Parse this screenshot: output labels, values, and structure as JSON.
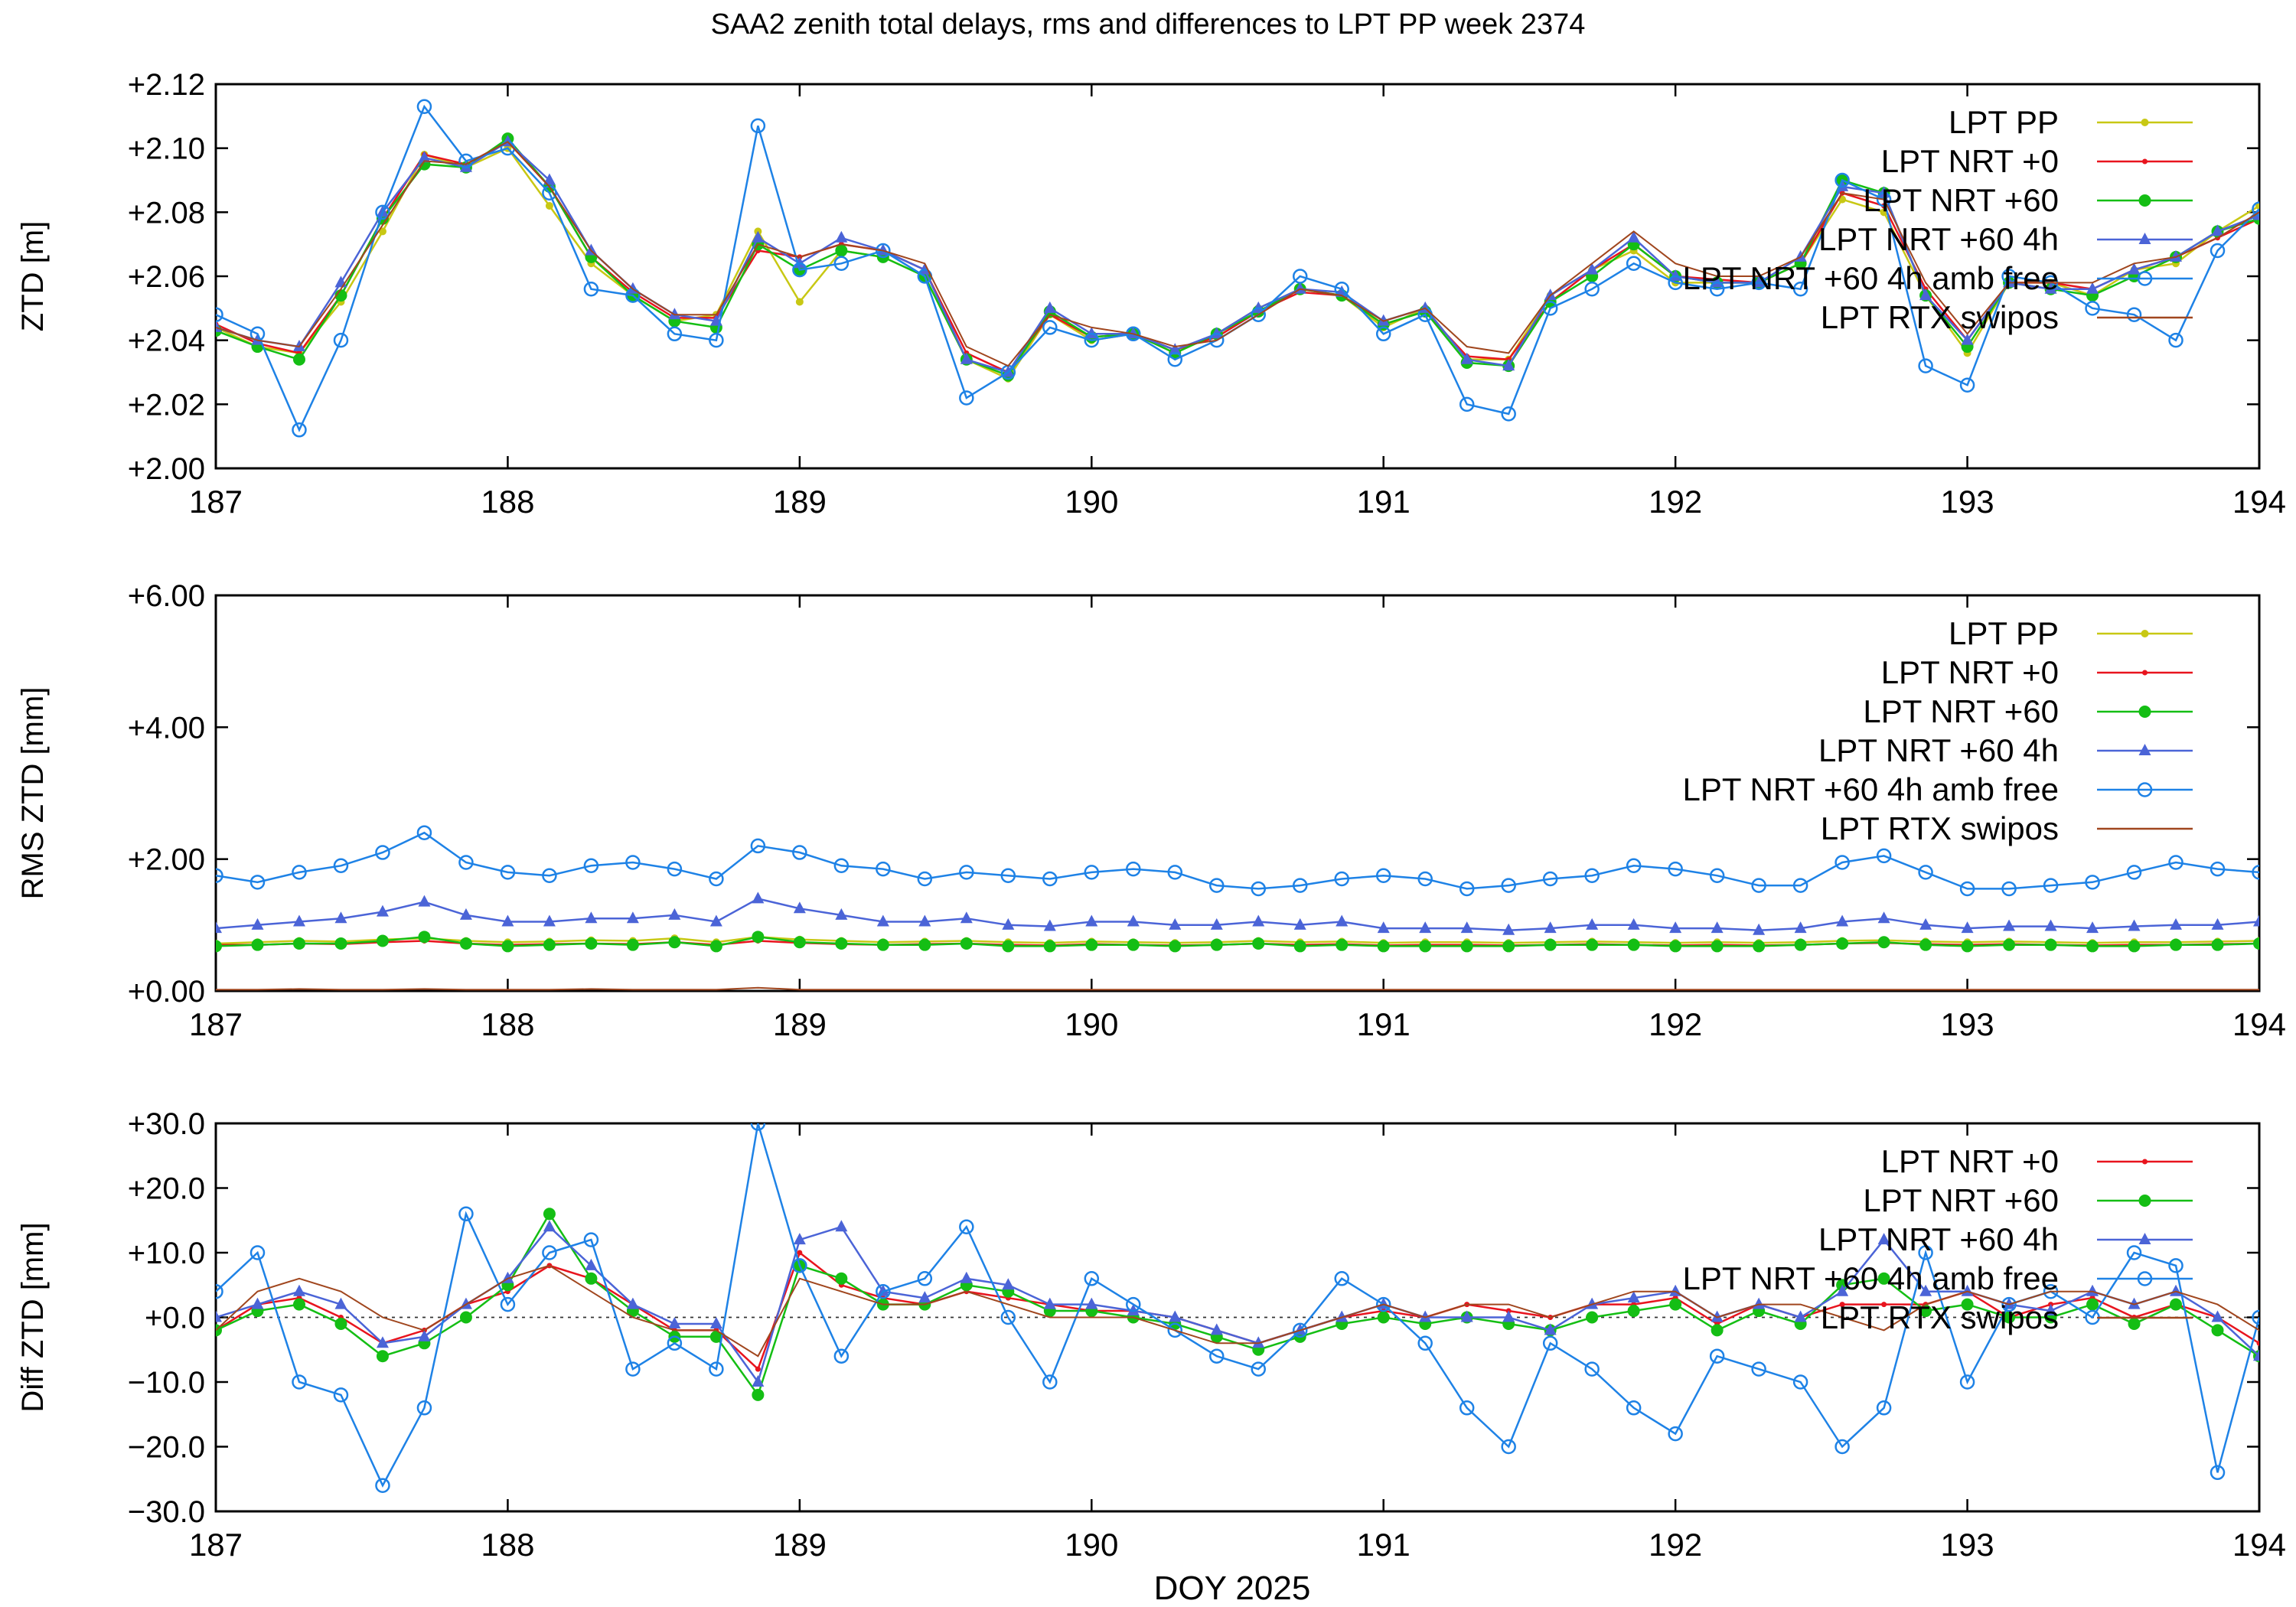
{
  "title": "SAA2 zenith total delays, rms and differences to LPT PP week 2374",
  "xlabel": "DOY 2025",
  "x_range": [
    187,
    194
  ],
  "x_ticks": [
    "187",
    "188",
    "189",
    "190",
    "191",
    "192",
    "193",
    "194"
  ],
  "colors": {
    "LPT PP": "#c8c814",
    "LPT NRT +0": "#e8141e",
    "LPT NRT +60": "#14be14",
    "LPT NRT +60 4h": "#4b64d7",
    "LPT NRT +60 4h amb free": "#1e82e6",
    "LPT RTX swipos": "#a0461e"
  },
  "chart_data": [
    {
      "id": "ztd",
      "type": "line",
      "ylabel": "ZTD [m]",
      "ylim": [
        2.0,
        2.12
      ],
      "y_ticks": [
        "+2.00",
        "+2.02",
        "+2.04",
        "+2.06",
        "+2.08",
        "+2.10",
        "+2.12"
      ],
      "legend": [
        "LPT PP",
        "LPT NRT +0",
        "LPT NRT +60",
        "LPT NRT +60 4h",
        "LPT NRT +60 4h amb free",
        "LPT RTX swipos"
      ],
      "series": [
        {
          "name": "LPT PP",
          "values": [
            2.044,
            2.038,
            2.036,
            2.052,
            2.074,
            2.098,
            2.094,
            2.1,
            2.082,
            2.064,
            2.054,
            2.046,
            2.048,
            2.074,
            2.052,
            2.068,
            2.066,
            2.06,
            2.034,
            2.028,
            2.048,
            2.04,
            2.042,
            2.036,
            2.042,
            2.05,
            2.056,
            2.054,
            2.044,
            2.05,
            2.034,
            2.034,
            2.054,
            2.062,
            2.068,
            2.058,
            2.058,
            2.058,
            2.064,
            2.084,
            2.08,
            2.054,
            2.036,
            2.058,
            2.058,
            2.054,
            2.062,
            2.064,
            2.074,
            2.082
          ]
        },
        {
          "name": "LPT NRT +0",
          "values": [
            2.045,
            2.039,
            2.036,
            2.054,
            2.078,
            2.098,
            2.095,
            2.102,
            2.088,
            2.066,
            2.055,
            2.047,
            2.047,
            2.068,
            2.066,
            2.07,
            2.068,
            2.062,
            2.036,
            2.03,
            2.048,
            2.041,
            2.042,
            2.037,
            2.041,
            2.049,
            2.055,
            2.054,
            2.045,
            2.049,
            2.035,
            2.034,
            2.052,
            2.062,
            2.07,
            2.06,
            2.059,
            2.058,
            2.064,
            2.086,
            2.082,
            2.056,
            2.04,
            2.058,
            2.058,
            2.056,
            2.062,
            2.066,
            2.072,
            2.078
          ]
        },
        {
          "name": "LPT NRT +60",
          "values": [
            2.043,
            2.038,
            2.034,
            2.054,
            2.078,
            2.095,
            2.094,
            2.103,
            2.088,
            2.066,
            2.054,
            2.046,
            2.044,
            2.07,
            2.062,
            2.068,
            2.066,
            2.06,
            2.034,
            2.029,
            2.049,
            2.041,
            2.042,
            2.036,
            2.042,
            2.049,
            2.056,
            2.054,
            2.045,
            2.049,
            2.033,
            2.032,
            2.052,
            2.06,
            2.07,
            2.06,
            2.058,
            2.058,
            2.064,
            2.09,
            2.086,
            2.054,
            2.038,
            2.058,
            2.056,
            2.054,
            2.06,
            2.066,
            2.074,
            2.078
          ]
        },
        {
          "name": "LPT NRT +60 4h",
          "values": [
            2.044,
            2.04,
            2.038,
            2.058,
            2.08,
            2.097,
            2.094,
            2.102,
            2.09,
            2.068,
            2.056,
            2.048,
            2.046,
            2.072,
            2.064,
            2.072,
            2.068,
            2.062,
            2.034,
            2.03,
            2.05,
            2.042,
            2.042,
            2.037,
            2.042,
            2.05,
            2.056,
            2.055,
            2.046,
            2.05,
            2.034,
            2.032,
            2.054,
            2.062,
            2.072,
            2.06,
            2.058,
            2.058,
            2.066,
            2.088,
            2.086,
            2.054,
            2.04,
            2.058,
            2.056,
            2.056,
            2.062,
            2.066,
            2.074,
            2.079
          ]
        },
        {
          "name": "LPT NRT +60 4h amb free",
          "values": [
            2.048,
            2.042,
            2.012,
            2.04,
            2.08,
            2.113,
            2.096,
            2.1,
            2.086,
            2.056,
            2.054,
            2.042,
            2.04,
            2.107,
            2.062,
            2.064,
            2.068,
            2.06,
            2.022,
            2.03,
            2.044,
            2.04,
            2.042,
            2.034,
            2.04,
            2.048,
            2.06,
            2.056,
            2.042,
            2.048,
            2.02,
            2.017,
            2.05,
            2.056,
            2.064,
            2.058,
            2.056,
            2.058,
            2.056,
            2.09,
            2.084,
            2.032,
            2.026,
            2.06,
            2.058,
            2.05,
            2.048,
            2.04,
            2.068,
            2.081
          ]
        },
        {
          "name": "LPT RTX swipos",
          "values": [
            2.044,
            2.04,
            2.038,
            2.056,
            2.076,
            2.096,
            2.095,
            2.102,
            2.088,
            2.068,
            2.056,
            2.048,
            2.048,
            2.07,
            2.066,
            2.07,
            2.068,
            2.064,
            2.038,
            2.032,
            2.048,
            2.044,
            2.042,
            2.038,
            2.04,
            2.048,
            2.056,
            2.054,
            2.046,
            2.05,
            2.038,
            2.036,
            2.054,
            2.064,
            2.074,
            2.064,
            2.06,
            2.06,
            2.066,
            2.086,
            2.084,
            2.058,
            2.042,
            2.058,
            2.058,
            2.058,
            2.064,
            2.066,
            2.072,
            2.08
          ]
        }
      ]
    },
    {
      "id": "rms",
      "type": "line",
      "ylabel": "RMS ZTD [mm]",
      "ylim": [
        0,
        6
      ],
      "y_ticks": [
        "+0.00",
        "+2.00",
        "+4.00",
        "+6.00"
      ],
      "legend": [
        "LPT PP",
        "LPT NRT +0",
        "LPT NRT +60",
        "LPT NRT +60 4h",
        "LPT NRT +60 4h amb free",
        "LPT RTX swipos"
      ],
      "series": [
        {
          "name": "LPT PP",
          "values": [
            0.72,
            0.74,
            0.76,
            0.75,
            0.78,
            0.8,
            0.76,
            0.74,
            0.75,
            0.77,
            0.76,
            0.8,
            0.74,
            0.82,
            0.78,
            0.76,
            0.74,
            0.75,
            0.76,
            0.74,
            0.73,
            0.75,
            0.74,
            0.73,
            0.74,
            0.76,
            0.74,
            0.75,
            0.73,
            0.74,
            0.74,
            0.73,
            0.74,
            0.75,
            0.74,
            0.73,
            0.74,
            0.73,
            0.74,
            0.76,
            0.77,
            0.75,
            0.74,
            0.75,
            0.74,
            0.73,
            0.74,
            0.74,
            0.75,
            0.76
          ]
        },
        {
          "name": "LPT NRT +0",
          "values": [
            0.7,
            0.7,
            0.72,
            0.71,
            0.74,
            0.76,
            0.72,
            0.7,
            0.71,
            0.72,
            0.71,
            0.74,
            0.7,
            0.76,
            0.73,
            0.71,
            0.7,
            0.71,
            0.72,
            0.7,
            0.69,
            0.71,
            0.7,
            0.69,
            0.7,
            0.72,
            0.7,
            0.71,
            0.69,
            0.7,
            0.7,
            0.69,
            0.7,
            0.71,
            0.7,
            0.69,
            0.7,
            0.69,
            0.7,
            0.72,
            0.73,
            0.71,
            0.7,
            0.71,
            0.7,
            0.69,
            0.7,
            0.7,
            0.71,
            0.72
          ]
        },
        {
          "name": "LPT NRT +60",
          "values": [
            0.68,
            0.7,
            0.72,
            0.72,
            0.76,
            0.82,
            0.72,
            0.68,
            0.7,
            0.72,
            0.7,
            0.74,
            0.68,
            0.82,
            0.74,
            0.72,
            0.7,
            0.7,
            0.72,
            0.68,
            0.68,
            0.7,
            0.7,
            0.68,
            0.7,
            0.72,
            0.68,
            0.7,
            0.68,
            0.68,
            0.68,
            0.68,
            0.7,
            0.7,
            0.7,
            0.68,
            0.68,
            0.68,
            0.7,
            0.72,
            0.74,
            0.7,
            0.68,
            0.7,
            0.7,
            0.68,
            0.68,
            0.7,
            0.7,
            0.72
          ]
        },
        {
          "name": "LPT NRT +60 4h",
          "values": [
            0.95,
            1.0,
            1.05,
            1.1,
            1.2,
            1.35,
            1.15,
            1.05,
            1.05,
            1.1,
            1.1,
            1.15,
            1.05,
            1.4,
            1.25,
            1.15,
            1.05,
            1.05,
            1.1,
            1.0,
            0.98,
            1.05,
            1.05,
            1.0,
            1.0,
            1.05,
            1.0,
            1.05,
            0.95,
            0.95,
            0.95,
            0.92,
            0.95,
            1.0,
            1.0,
            0.95,
            0.95,
            0.92,
            0.95,
            1.05,
            1.1,
            1.0,
            0.95,
            0.98,
            0.98,
            0.95,
            0.98,
            1.0,
            1.0,
            1.05
          ]
        },
        {
          "name": "LPT NRT +60 4h amb free",
          "values": [
            1.75,
            1.65,
            1.8,
            1.9,
            2.1,
            2.4,
            1.95,
            1.8,
            1.75,
            1.9,
            1.95,
            1.85,
            1.7,
            2.2,
            2.1,
            1.9,
            1.85,
            1.7,
            1.8,
            1.75,
            1.7,
            1.8,
            1.85,
            1.8,
            1.6,
            1.55,
            1.6,
            1.7,
            1.75,
            1.7,
            1.55,
            1.6,
            1.7,
            1.75,
            1.9,
            1.85,
            1.75,
            1.6,
            1.6,
            1.95,
            2.05,
            1.8,
            1.55,
            1.55,
            1.6,
            1.65,
            1.8,
            1.95,
            1.85,
            1.8
          ]
        },
        {
          "name": "LPT RTX swipos",
          "values": [
            0.02,
            0.02,
            0.03,
            0.02,
            0.02,
            0.03,
            0.02,
            0.02,
            0.02,
            0.03,
            0.02,
            0.02,
            0.02,
            0.05,
            0.02,
            0.02,
            0.02,
            0.02,
            0.02,
            0.02,
            0.02,
            0.02,
            0.02,
            0.02,
            0.02,
            0.02,
            0.02,
            0.02,
            0.02,
            0.02,
            0.02,
            0.02,
            0.02,
            0.02,
            0.02,
            0.02,
            0.02,
            0.02,
            0.02,
            0.02,
            0.02,
            0.02,
            0.02,
            0.02,
            0.02,
            0.02,
            0.02,
            0.02,
            0.02,
            0.02
          ]
        }
      ]
    },
    {
      "id": "diff",
      "type": "line",
      "ylabel": "Diff ZTD [mm]",
      "ylim": [
        -30,
        30
      ],
      "y_ticks": [
        "−30.0",
        "−20.0",
        "−10.0",
        "+0.0",
        "+10.0",
        "+20.0",
        "+30.0"
      ],
      "legend": [
        "LPT NRT +0",
        "LPT NRT +60",
        "LPT NRT +60 4h",
        "LPT NRT +60 4h amb free",
        "LPT RTX swipos"
      ],
      "series": [
        {
          "name": "LPT NRT +0",
          "values": [
            -2,
            2,
            3,
            0,
            -4,
            -2,
            2,
            4,
            8,
            6,
            2,
            -2,
            -2,
            -8,
            10,
            5,
            3,
            2,
            4,
            3,
            2,
            1,
            1,
            0,
            -2,
            -4,
            -2,
            0,
            1,
            0,
            2,
            1,
            0,
            2,
            2,
            3,
            -1,
            2,
            0,
            2,
            2,
            2,
            4,
            0,
            2,
            3,
            0,
            2,
            0,
            -4
          ]
        },
        {
          "name": "LPT NRT +60",
          "values": [
            -2,
            1,
            2,
            -1,
            -6,
            -4,
            0,
            5,
            16,
            6,
            1,
            -3,
            -3,
            -12,
            8,
            6,
            2,
            2,
            5,
            4,
            1,
            1,
            0,
            -1,
            -3,
            -5,
            -3,
            -1,
            0,
            -1,
            0,
            -1,
            -2,
            0,
            1,
            2,
            -2,
            1,
            -1,
            5,
            6,
            1,
            2,
            0,
            0,
            2,
            -1,
            2,
            -2,
            -6
          ]
        },
        {
          "name": "LPT NRT +60 4h",
          "values": [
            0,
            2,
            4,
            2,
            -4,
            -3,
            2,
            6,
            14,
            8,
            2,
            -1,
            -1,
            -10,
            12,
            14,
            4,
            3,
            6,
            5,
            2,
            2,
            1,
            0,
            -2,
            -4,
            -2,
            0,
            2,
            0,
            0,
            0,
            -2,
            2,
            3,
            4,
            0,
            2,
            0,
            4,
            12,
            4,
            4,
            2,
            1,
            4,
            2,
            4,
            0,
            -6
          ]
        },
        {
          "name": "LPT NRT +60 4h amb free",
          "values": [
            4,
            10,
            -10,
            -12,
            -26,
            -14,
            16,
            2,
            10,
            12,
            -8,
            -4,
            -8,
            30,
            8,
            -6,
            4,
            6,
            14,
            0,
            -10,
            6,
            2,
            -2,
            -6,
            -8,
            -2,
            6,
            2,
            -4,
            -14,
            -20,
            -4,
            -8,
            -14,
            -18,
            -6,
            -8,
            -10,
            -20,
            -14,
            10,
            -10,
            2,
            4,
            0,
            10,
            8,
            -24,
            0
          ]
        },
        {
          "name": "LPT RTX swipos",
          "values": [
            -2,
            4,
            6,
            4,
            0,
            -2,
            2,
            6,
            8,
            4,
            0,
            -2,
            -2,
            -6,
            6,
            4,
            2,
            2,
            4,
            2,
            0,
            0,
            0,
            -2,
            -4,
            -4,
            -2,
            0,
            2,
            0,
            2,
            2,
            0,
            2,
            4,
            4,
            0,
            2,
            2,
            0,
            -2,
            2,
            4,
            2,
            4,
            4,
            2,
            4,
            2,
            -2
          ]
        }
      ]
    }
  ]
}
